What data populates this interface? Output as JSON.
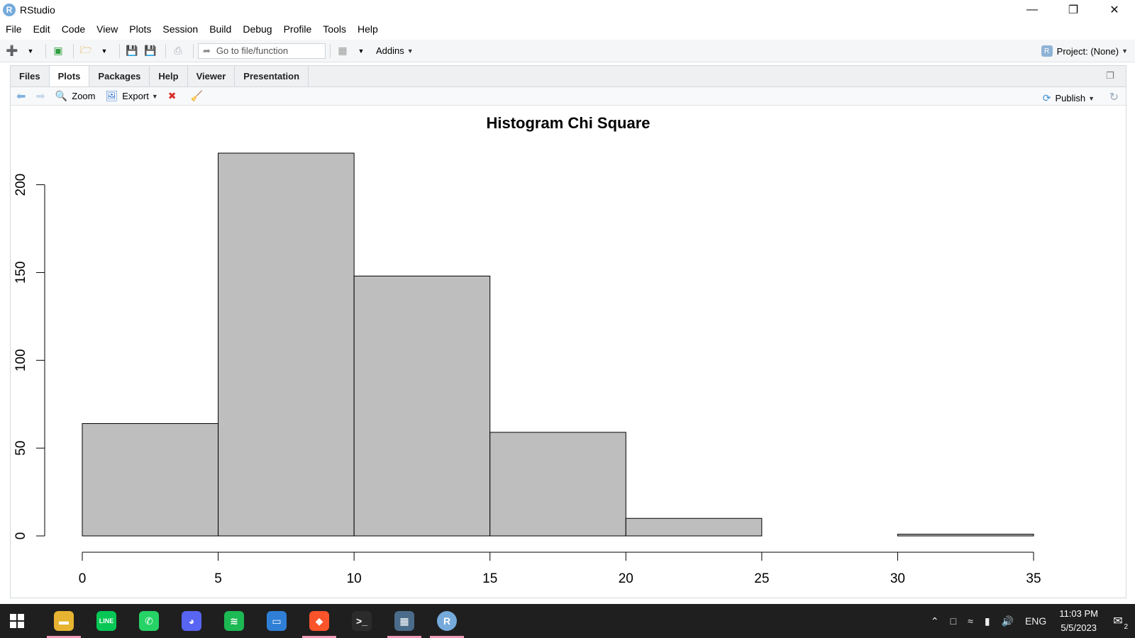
{
  "window": {
    "title": "RStudio",
    "logo_letter": "R"
  },
  "menu": [
    "File",
    "Edit",
    "Code",
    "View",
    "Plots",
    "Session",
    "Build",
    "Debug",
    "Profile",
    "Tools",
    "Help"
  ],
  "toolbar": {
    "goto_placeholder": "Go to file/function",
    "addins_label": "Addins",
    "project_label": "Project: (None)"
  },
  "pane_tabs": [
    "Files",
    "Plots",
    "Packages",
    "Help",
    "Viewer",
    "Presentation"
  ],
  "active_tab": "Plots",
  "plot_toolbar": {
    "zoom_label": "Zoom",
    "export_label": "Export",
    "publish_label": "Publish"
  },
  "chart_data": {
    "type": "bar",
    "title": "Histogram Chi Square",
    "xlabel": "",
    "ylabel": "",
    "bins": [
      {
        "from": 0,
        "to": 5,
        "count": 64
      },
      {
        "from": 5,
        "to": 10,
        "count": 218
      },
      {
        "from": 10,
        "to": 15,
        "count": 148
      },
      {
        "from": 15,
        "to": 20,
        "count": 59
      },
      {
        "from": 20,
        "to": 25,
        "count": 10
      },
      {
        "from": 25,
        "to": 30,
        "count": 0
      },
      {
        "from": 30,
        "to": 35,
        "count": 1
      }
    ],
    "x_ticks": [
      0,
      5,
      10,
      15,
      20,
      25,
      30,
      35
    ],
    "y_ticks": [
      0,
      50,
      100,
      150,
      200
    ],
    "xlim": [
      0,
      35
    ],
    "ylim": [
      0,
      218
    ],
    "bar_fill": "#bebebe",
    "bar_stroke": "#000000",
    "grid": false
  },
  "taskbar": {
    "apps": [
      {
        "name": "file-explorer",
        "color": "#e6b431",
        "glyph": "▬",
        "active": true
      },
      {
        "name": "line",
        "color": "#06c755",
        "glyph": "LINE",
        "active": false
      },
      {
        "name": "whatsapp",
        "color": "#25d366",
        "glyph": "✆",
        "active": false
      },
      {
        "name": "discord",
        "color": "#5865f2",
        "glyph": "◕",
        "active": false
      },
      {
        "name": "spotify",
        "color": "#1db954",
        "glyph": "≋",
        "active": false
      },
      {
        "name": "notepad",
        "color": "#2f7fd6",
        "glyph": "▭",
        "active": false
      },
      {
        "name": "brave",
        "color": "#fb542b",
        "glyph": "◆",
        "active": true
      },
      {
        "name": "terminal",
        "color": "#2b2b2b",
        "glyph": ">_",
        "active": false
      },
      {
        "name": "calculator",
        "color": "#4a6c8a",
        "glyph": "▦",
        "active": true
      },
      {
        "name": "rstudio",
        "color": "#75aadb",
        "glyph": "R",
        "active": true
      }
    ],
    "language": "ENG",
    "time": "11:03 PM",
    "date": "5/5/2023",
    "notification_count": "2"
  }
}
